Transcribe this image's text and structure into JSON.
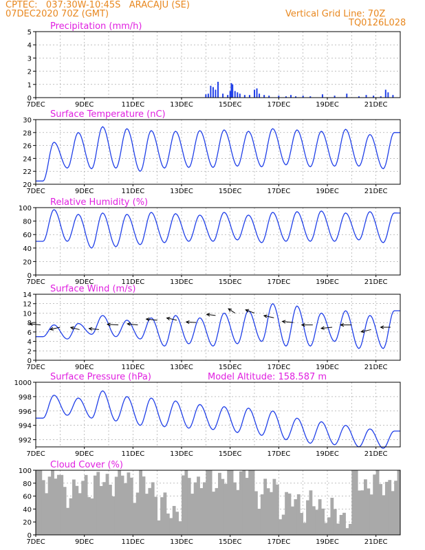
{
  "header": {
    "line1_left": "CPTEC:   037:30W-10:45S   ARACAJU (SE)",
    "line2_left": "07DEC2020 70Z (GMT)",
    "line1_right": "Vertical Grid Line: 70Z",
    "line2_right": "TQ0126L028"
  },
  "colors": {
    "header": "#e8871e",
    "title": "#e020e0",
    "series": "#1f3fe8",
    "cloud": "#a9a9a9"
  },
  "chart_data": [
    {
      "type": "bar",
      "title": "Precipitation (mm/h)",
      "ylim": [
        0,
        5
      ],
      "yticks": [
        "0",
        "1",
        "2",
        "3",
        "4",
        "5"
      ],
      "x_ticks": [
        "7DEC",
        "9DEC",
        "11DEC",
        "13DEC",
        "15DEC",
        "17DEC",
        "19DEC",
        "21DEC"
      ],
      "x": [
        14.0,
        14.1,
        14.2,
        14.3,
        14.4,
        14.5,
        14.7,
        14.9,
        15.0,
        15.05,
        15.1,
        15.2,
        15.3,
        15.4,
        15.6,
        15.8,
        16.0,
        16.1,
        16.2,
        16.4,
        16.6,
        17.0,
        17.3,
        17.5,
        17.7,
        18.0,
        18.3,
        18.8,
        19.3,
        19.8,
        20.3,
        20.6,
        20.9,
        21.2,
        21.4,
        21.5,
        21.7
      ],
      "values": [
        0.25,
        0.3,
        0.9,
        0.8,
        0.6,
        1.2,
        0.3,
        0.2,
        0.5,
        1.1,
        1.0,
        0.5,
        0.4,
        0.3,
        0.2,
        0.2,
        0.6,
        0.7,
        0.3,
        0.2,
        0.15,
        0.15,
        0.1,
        0.2,
        0.1,
        0.15,
        0.1,
        0.25,
        0.15,
        0.3,
        0.1,
        0.2,
        0.15,
        0.1,
        0.6,
        0.4,
        0.2
      ]
    },
    {
      "type": "line",
      "title": "Surface Temperature (nC)",
      "ylim": [
        20,
        30
      ],
      "yticks": [
        "20",
        "22",
        "24",
        "26",
        "28",
        "30"
      ],
      "x_ticks": [
        "7DEC",
        "9DEC",
        "11DEC",
        "13DEC",
        "15DEC",
        "17DEC",
        "19DEC",
        "21DEC"
      ],
      "peaks": [
        26.5,
        28.0,
        28.9,
        28.6,
        28.3,
        28.2,
        28.3,
        28.4,
        28.2,
        28.6,
        28.4,
        28.2,
        28.5,
        27.7,
        28.0
      ],
      "troughs": [
        20.5,
        22.5,
        22.4,
        22.5,
        22.0,
        22.5,
        22.6,
        22.6,
        22.8,
        22.7,
        23.0,
        22.7,
        22.8,
        22.8,
        22.4
      ]
    },
    {
      "type": "line",
      "title": "Relative Humidity (%)",
      "ylim": [
        0,
        100
      ],
      "yticks": [
        "0",
        "20",
        "40",
        "60",
        "80",
        "100"
      ],
      "x_ticks": [
        "7DEC",
        "9DEC",
        "11DEC",
        "13DEC",
        "15DEC",
        "17DEC",
        "19DEC",
        "21DEC"
      ],
      "peaks": [
        97,
        90,
        92,
        90,
        93,
        91,
        89,
        93,
        89,
        93,
        94,
        95,
        92,
        94,
        92
      ],
      "troughs": [
        50,
        50,
        40,
        42,
        45,
        48,
        50,
        50,
        52,
        48,
        50,
        50,
        50,
        52,
        48
      ]
    },
    {
      "type": "line",
      "title": "Surface Wind (m/s)",
      "ylim": [
        0,
        14
      ],
      "yticks": [
        "0",
        "2",
        "4",
        "6",
        "8",
        "10",
        "12",
        "14"
      ],
      "x_ticks": [
        "7DEC",
        "9DEC",
        "11DEC",
        "13DEC",
        "15DEC",
        "17DEC",
        "19DEC",
        "21DEC"
      ],
      "peaks": [
        7.5,
        7.8,
        9.5,
        8.5,
        9.0,
        9.5,
        9.0,
        10.0,
        10.5,
        12.0,
        11.5,
        10.0,
        10.5,
        9.5,
        10.5
      ],
      "troughs": [
        5.0,
        4.5,
        5.5,
        5.0,
        4.5,
        3.0,
        3.5,
        3.0,
        3.5,
        4.0,
        3.0,
        3.0,
        4.0,
        2.5,
        2.5
      ],
      "arrow_days": [
        7.2,
        8.0,
        8.8,
        9.6,
        10.4,
        11.2,
        12.0,
        12.8,
        13.6,
        14.4,
        15.2,
        16.0,
        16.8,
        17.6,
        18.4,
        19.2,
        20.0,
        20.8,
        21.6
      ],
      "arrow_speed": [
        7.5,
        7.0,
        6.5,
        6.5,
        7.5,
        7.5,
        8.5,
        8.5,
        8.0,
        9.5,
        10.0,
        10.0,
        9.0,
        8.0,
        7.5,
        7.0,
        7.5,
        6.5,
        7.0
      ],
      "arrow_u": [
        -1.0,
        -0.9,
        -0.8,
        -0.9,
        -1.0,
        -0.95,
        -1.0,
        -0.9,
        -0.9,
        -0.8,
        -0.6,
        -0.8,
        -0.9,
        -1.0,
        -1.0,
        -1.0,
        -1.0,
        -0.9,
        -0.9
      ],
      "arrow_v": [
        0.1,
        -0.2,
        0.2,
        0.1,
        0.05,
        0.1,
        0.1,
        0.2,
        0.05,
        0.1,
        0.4,
        0.3,
        0.2,
        0.1,
        0.0,
        -0.1,
        0.0,
        -0.2,
        0.0
      ]
    },
    {
      "type": "line",
      "title": "Surface Pressure (hPa)",
      "annotation": "Model Altitude: 158.587 m",
      "ylim": [
        991,
        1000
      ],
      "yticks": [
        "992",
        "994",
        "996",
        "998",
        "1000"
      ],
      "x_ticks": [
        "7DEC",
        "9DEC",
        "11DEC",
        "13DEC",
        "15DEC",
        "17DEC",
        "19DEC",
        "21DEC"
      ],
      "peaks": [
        998.2,
        997.8,
        998.8,
        998.0,
        997.8,
        997.4,
        996.9,
        996.6,
        996.4,
        996.0,
        995.0,
        994.5,
        994.0,
        993.5,
        993.2
      ],
      "troughs": [
        995.0,
        995.4,
        995.0,
        994.6,
        994.0,
        993.8,
        993.6,
        993.4,
        993.0,
        992.6,
        992.0,
        991.5,
        991.3,
        991.0,
        990.8
      ]
    },
    {
      "type": "bar",
      "title": "Cloud Cover (%)",
      "ylim": [
        0,
        100
      ],
      "yticks": [
        "0",
        "20",
        "40",
        "60",
        "80",
        "100"
      ],
      "x_ticks": [
        "7DEC",
        "9DEC",
        "11DEC",
        "13DEC",
        "15DEC",
        "17DEC",
        "19DEC",
        "21DEC"
      ],
      "day_cover": [
        92,
        70,
        80,
        88,
        75,
        40,
        85,
        88,
        95,
        70,
        50,
        45,
        30,
        80,
        82
      ]
    }
  ]
}
